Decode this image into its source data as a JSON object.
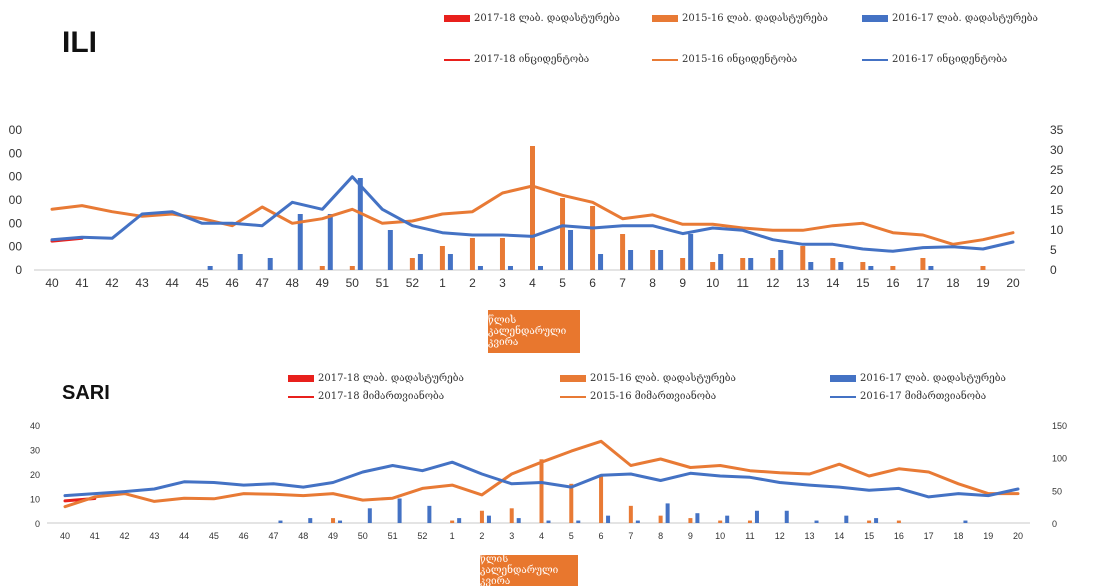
{
  "panels": {
    "ili": {
      "title": "ILI",
      "week_label": "წლის კალენდარული კვირა",
      "legend": {
        "bar_2017": "2017-18 ლაბ. დადასტურება",
        "bar_2015": "2015-16 ლაბ. დადასტურება",
        "bar_2016": "2016-17 ლაბ. დადასტურება",
        "line_2017": "2017-18 ინციდენტობა",
        "line_2015": "2015-16 ინციდენტობა",
        "line_2016": "2016-17 ინციდენტობა"
      }
    },
    "sari": {
      "title": "SARI",
      "week_label": "წლის კალენდარული კვირა",
      "legend": {
        "bar_2017": "2017-18 ლაბ. დადასტურება",
        "bar_2015": "2015-16 ლაბ. დადასტურება",
        "bar_2016": "2016-17 ლაბ. დადასტურება",
        "line_2017": "2017-18 მიმართვიანობა",
        "line_2015": "2015-16 მიმართვიანობა",
        "line_2016": "2016-17 მიმართვიანობა"
      }
    }
  },
  "colors": {
    "s2017": "#e8201c",
    "s2015": "#e87a35",
    "s2016": "#4472c4"
  },
  "chart_data": [
    {
      "type": "bar",
      "title": "ILI",
      "xlabel": "წლის კალენდარული კვირა",
      "categories": [
        "40",
        "41",
        "42",
        "43",
        "44",
        "45",
        "46",
        "47",
        "48",
        "49",
        "50",
        "51",
        "52",
        "1",
        "2",
        "3",
        "4",
        "5",
        "6",
        "7",
        "8",
        "9",
        "10",
        "11",
        "12",
        "13",
        "14",
        "15",
        "16",
        "17",
        "18",
        "19",
        "20"
      ],
      "y_left": {
        "ticks": [
          "00",
          "00",
          "00",
          "00",
          "00",
          "00",
          "0"
        ],
        "range": [
          0,
          300
        ]
      },
      "y_right": {
        "ticks": [
          "0",
          "5",
          "10",
          "15",
          "20",
          "25",
          "30",
          "35"
        ],
        "range": [
          0,
          35
        ]
      },
      "series": [
        {
          "name": "2017-18 ლაბ. დადასტურება",
          "kind": "bar",
          "axis": "right",
          "values": [
            null,
            null,
            null,
            null,
            null,
            null,
            null,
            null,
            null,
            null,
            null,
            null,
            null,
            null,
            null,
            null,
            null,
            null,
            null,
            null,
            null,
            null,
            null,
            null,
            null,
            null,
            null,
            null,
            null,
            null,
            null,
            null,
            null
          ]
        },
        {
          "name": "2015-16 ლაბ. დადასტურება",
          "kind": "bar",
          "axis": "right",
          "values": [
            0,
            0,
            0,
            0,
            0,
            0,
            0,
            0,
            0,
            1,
            1,
            0,
            3,
            6,
            8,
            8,
            31,
            18,
            16,
            9,
            5,
            3,
            2,
            3,
            3,
            6,
            3,
            2,
            1,
            3,
            0,
            1,
            0
          ]
        },
        {
          "name": "2016-17 ლაბ. დადასტურება",
          "kind": "bar",
          "axis": "right",
          "values": [
            0,
            0,
            0,
            0,
            0,
            1,
            4,
            3,
            14,
            14,
            23,
            10,
            4,
            4,
            1,
            1,
            1,
            10,
            4,
            5,
            5,
            9,
            4,
            3,
            5,
            2,
            2,
            1,
            0,
            1,
            0,
            0,
            0
          ]
        },
        {
          "name": "2017-18 ინციდენტობა",
          "kind": "line",
          "axis": "left",
          "values": [
            62,
            68,
            null,
            null,
            null,
            null,
            null,
            null,
            null,
            null,
            null,
            null,
            null,
            null,
            null,
            null,
            null,
            null,
            null,
            null,
            null,
            null,
            null,
            null,
            null,
            null,
            null,
            null,
            null,
            null,
            null,
            null,
            null
          ]
        },
        {
          "name": "2015-16 ინციდენტობა",
          "kind": "line",
          "axis": "left",
          "values": [
            130,
            138,
            125,
            115,
            120,
            110,
            95,
            135,
            100,
            110,
            130,
            100,
            105,
            120,
            125,
            165,
            180,
            160,
            145,
            110,
            118,
            98,
            98,
            90,
            85,
            85,
            95,
            100,
            80,
            75,
            55,
            65,
            80
          ]
        },
        {
          "name": "2016-17 ინციდენტობა",
          "kind": "line",
          "axis": "left",
          "values": [
            65,
            70,
            68,
            120,
            125,
            100,
            100,
            95,
            145,
            130,
            200,
            130,
            95,
            80,
            75,
            75,
            72,
            95,
            90,
            95,
            95,
            78,
            90,
            85,
            65,
            55,
            55,
            45,
            40,
            48,
            50,
            45,
            60
          ]
        }
      ]
    },
    {
      "type": "bar",
      "title": "SARI",
      "xlabel": "წლის კალენდარული კვირა",
      "categories": [
        "40",
        "41",
        "42",
        "43",
        "44",
        "45",
        "46",
        "47",
        "48",
        "49",
        "50",
        "51",
        "52",
        "1",
        "2",
        "3",
        "4",
        "5",
        "6",
        "7",
        "8",
        "9",
        "10",
        "11",
        "12",
        "13",
        "14",
        "15",
        "16",
        "17",
        "18",
        "19",
        "20"
      ],
      "y_left": {
        "ticks": [
          "0",
          "10",
          "20",
          "30",
          "40"
        ],
        "range": [
          0,
          40
        ]
      },
      "y_right": {
        "ticks": [
          "0",
          "50",
          "100",
          "150"
        ],
        "range": [
          0,
          150
        ]
      },
      "series": [
        {
          "name": "2017-18 ლაბ. დადასტურება",
          "kind": "bar",
          "axis": "left",
          "values": [
            null,
            null,
            null,
            null,
            null,
            null,
            null,
            null,
            null,
            null,
            null,
            null,
            null,
            null,
            null,
            null,
            null,
            null,
            null,
            null,
            null,
            null,
            null,
            null,
            null,
            null,
            null,
            null,
            null,
            null,
            null,
            null,
            null
          ]
        },
        {
          "name": "2015-16 ლაბ. დადასტურება",
          "kind": "bar",
          "axis": "left",
          "values": [
            0,
            0,
            0,
            0,
            0,
            0,
            0,
            0,
            0,
            2,
            0,
            0,
            0,
            1,
            5,
            6,
            26,
            16,
            19,
            7,
            3,
            2,
            1,
            1,
            0,
            0,
            0,
            1,
            1,
            0,
            0,
            0,
            0
          ]
        },
        {
          "name": "2016-17 ლაბ. დადასტურება",
          "kind": "bar",
          "axis": "left",
          "values": [
            0,
            0,
            0,
            0,
            0,
            0,
            0,
            1,
            2,
            1,
            6,
            10,
            7,
            2,
            3,
            2,
            1,
            1,
            3,
            1,
            8,
            4,
            3,
            5,
            5,
            1,
            3,
            2,
            0,
            0,
            1,
            0,
            0
          ]
        },
        {
          "name": "2017-18 მიმართვიანობა",
          "kind": "line",
          "axis": "left",
          "values": [
            9,
            10,
            null,
            null,
            null,
            null,
            null,
            null,
            null,
            null,
            null,
            null,
            null,
            null,
            null,
            null,
            null,
            null,
            null,
            null,
            null,
            null,
            null,
            null,
            null,
            null,
            null,
            null,
            null,
            null,
            null,
            null,
            null
          ]
        },
        {
          "name": "2015-16 მიმართვიანობა",
          "kind": "line",
          "axis": "right",
          "values": [
            25,
            40,
            45,
            33,
            38,
            37,
            45,
            44,
            42,
            45,
            35,
            38,
            53,
            58,
            43,
            75,
            93,
            110,
            125,
            88,
            98,
            85,
            88,
            80,
            77,
            75,
            90,
            72,
            83,
            78,
            60,
            45,
            45
          ]
        },
        {
          "name": "2016-17 მიმართვიანობა",
          "kind": "line",
          "axis": "right",
          "values": [
            42,
            45,
            48,
            52,
            63,
            62,
            58,
            60,
            55,
            62,
            78,
            88,
            80,
            93,
            75,
            60,
            62,
            55,
            73,
            75,
            65,
            76,
            72,
            70,
            62,
            58,
            55,
            50,
            53,
            40,
            45,
            42,
            52
          ]
        }
      ]
    }
  ]
}
